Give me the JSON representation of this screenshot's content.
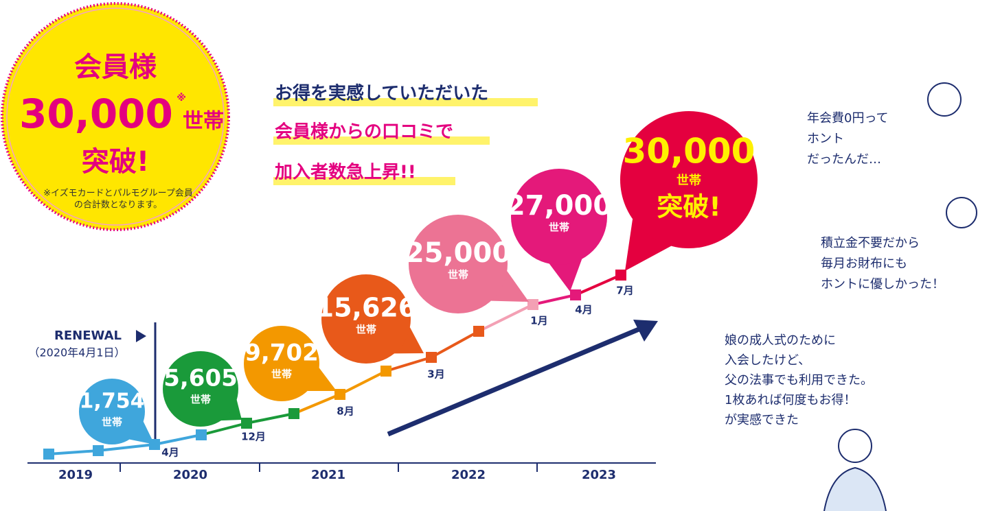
{
  "badge": {
    "line1": "会員様",
    "number": "30,000",
    "mark": "※",
    "unit": "世帯",
    "line3": "突破!",
    "note1": "※イズモカードとパルモグループ会員",
    "note2": "の合計数となります。"
  },
  "headline": [
    "お得を実感していただいた",
    "会員様からの口コミで",
    "加入者数急上昇!!"
  ],
  "renewal": {
    "label": "RENEWAL",
    "date": "（2020年4月1日）"
  },
  "years": [
    "2019",
    "2020",
    "2021",
    "2022",
    "2023"
  ],
  "months": [
    "4月",
    "12月",
    "8月",
    "3月",
    "1月",
    "4月",
    "7月"
  ],
  "bubbles": [
    {
      "count": "1,754",
      "unit": "世帯"
    },
    {
      "count": "5,605",
      "unit": "世帯"
    },
    {
      "count": "9,702",
      "unit": "世帯"
    },
    {
      "count": "15,626",
      "unit": "世帯"
    },
    {
      "count": "25,000",
      "unit": "世帯"
    },
    {
      "count": "27,000",
      "unit": "世帯"
    },
    {
      "count": "30,000",
      "unit": "世帯",
      "extra": "突破!"
    }
  ],
  "testimonials": [
    [
      "年会費0円って",
      "ホント",
      "だったんだ…"
    ],
    [
      "積立金不要だから",
      "毎月お財布にも",
      "ホントに優しかった！"
    ],
    [
      "娘の成人式のために",
      "入会したけど、",
      "父の法事でも利用できた。",
      "1枚あれば何度もお得！",
      "が実感できた"
    ]
  ]
}
